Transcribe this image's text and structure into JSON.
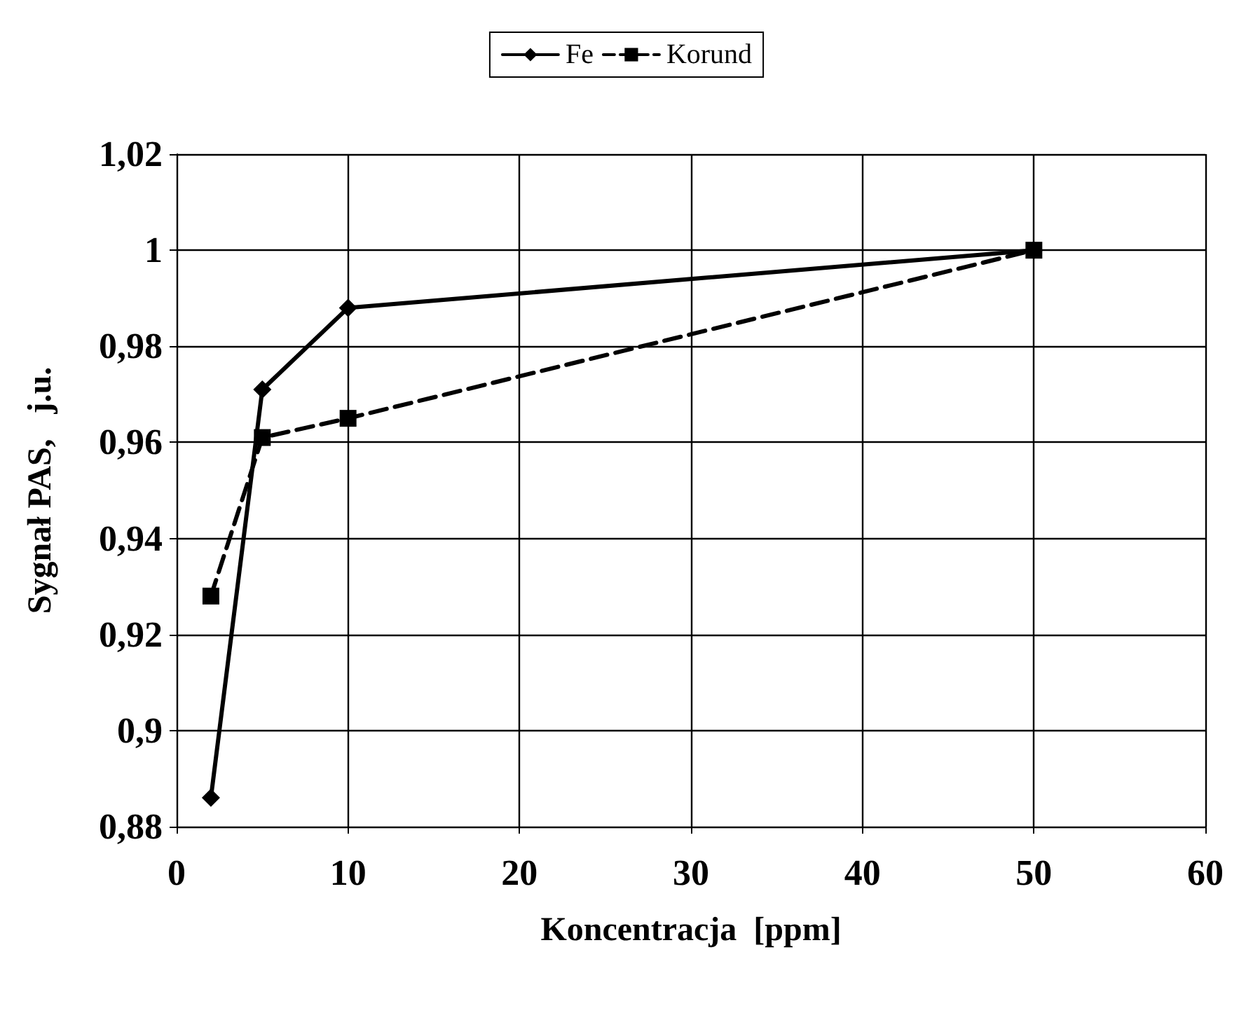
{
  "chart_data": {
    "type": "line",
    "xlabel": "Koncentracja  [ppm]",
    "ylabel": "Sygnał PAS,   j.u.",
    "xlim": [
      0,
      60
    ],
    "xticks": [
      0,
      10,
      20,
      30,
      40,
      50,
      60
    ],
    "ylim": [
      0.88,
      1.02
    ],
    "yticks": [
      {
        "value": 0.88,
        "label": "0,88"
      },
      {
        "value": 0.9,
        "label": "0,9"
      },
      {
        "value": 0.92,
        "label": "0,92"
      },
      {
        "value": 0.94,
        "label": "0,94"
      },
      {
        "value": 0.96,
        "label": "0,96"
      },
      {
        "value": 0.98,
        "label": "0,98"
      },
      {
        "value": 1,
        "label": "1"
      },
      {
        "value": 1.02,
        "label": "1,02"
      }
    ],
    "grid": true,
    "legend": "top",
    "x": [
      2,
      5,
      10,
      50
    ],
    "series": [
      {
        "name": "Fe",
        "color": "#000000",
        "values": [
          0.886,
          0.971,
          0.988,
          1
        ],
        "marker": "diamond",
        "line_style": "solid"
      },
      {
        "name": "Korund",
        "color": "#000000",
        "values": [
          0.928,
          0.961,
          0.965,
          1
        ],
        "marker": "square",
        "line_style": "dashed"
      }
    ]
  }
}
